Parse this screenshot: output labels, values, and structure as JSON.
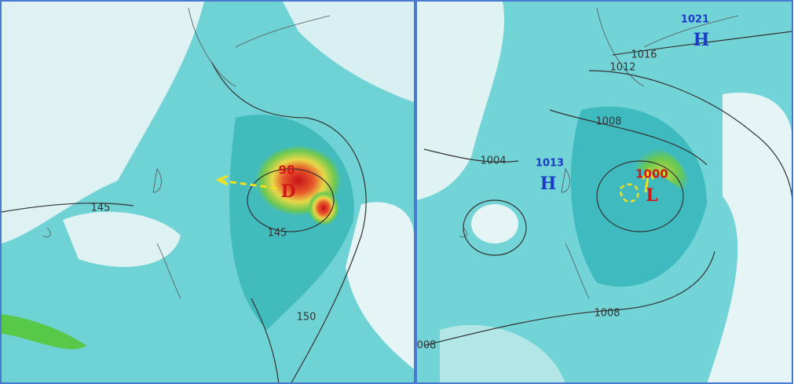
{
  "panels": [
    {
      "labels": [
        "98",
        "D",
        "145",
        "145",
        "150"
      ]
    },
    {
      "labels": [
        "1021",
        "H",
        "1016",
        "1012",
        "1008",
        "1004",
        "1013",
        "H",
        "1000",
        "L",
        "1008",
        "008"
      ]
    }
  ]
}
